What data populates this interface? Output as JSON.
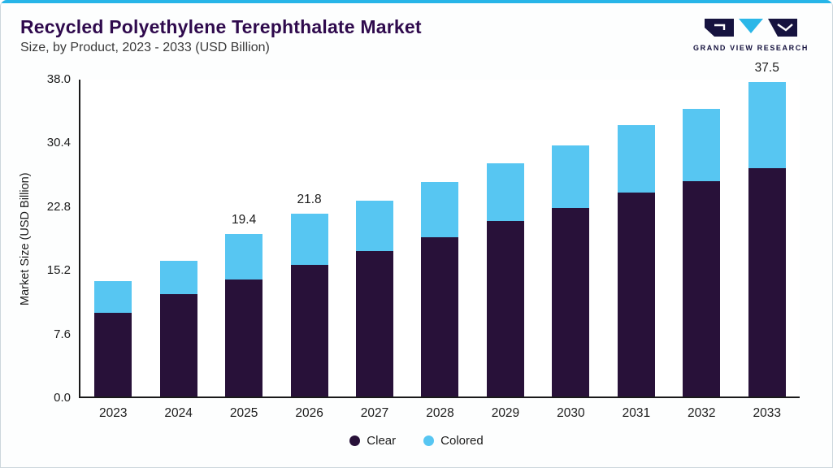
{
  "header": {
    "title": "Recycled Polyethylene Terephthalate Market",
    "subtitle": "Size, by Product, 2023 - 2033 (USD Billion)",
    "logo_text": "GRAND VIEW RESEARCH"
  },
  "chart_data": {
    "type": "bar",
    "stacked": true,
    "title": "Recycled Polyethylene Terephthalate Market Size, by Product, 2023 - 2033 (USD Billion)",
    "xlabel": "",
    "ylabel": "Market Size (USD Billion)",
    "ylim": [
      0,
      38
    ],
    "ytick_labels": [
      "0.0",
      "7.6",
      "15.2",
      "22.8",
      "30.4",
      "38.0"
    ],
    "grid": false,
    "legend_position": "bottom",
    "categories": [
      "2023",
      "2024",
      "2025",
      "2026",
      "2027",
      "2028",
      "2029",
      "2030",
      "2031",
      "2032",
      "2033"
    ],
    "series": [
      {
        "name": "Clear",
        "color": "#281139",
        "values": [
          10.0,
          12.2,
          14.0,
          15.7,
          17.4,
          19.0,
          20.9,
          22.5,
          24.3,
          25.7,
          27.2
        ]
      },
      {
        "name": "Colored",
        "color": "#57c6f2",
        "values": [
          3.8,
          4.0,
          5.4,
          6.1,
          6.0,
          6.6,
          6.9,
          7.5,
          8.1,
          8.6,
          10.3
        ]
      }
    ],
    "data_labels": {
      "2025": "19.4",
      "2026": "21.8",
      "2033": "37.5"
    }
  },
  "colors": {
    "accent_line": "#27b5e8",
    "title": "#2f0a4d",
    "logo_navy": "#16133f",
    "logo_cyan": "#2bb7e8"
  }
}
